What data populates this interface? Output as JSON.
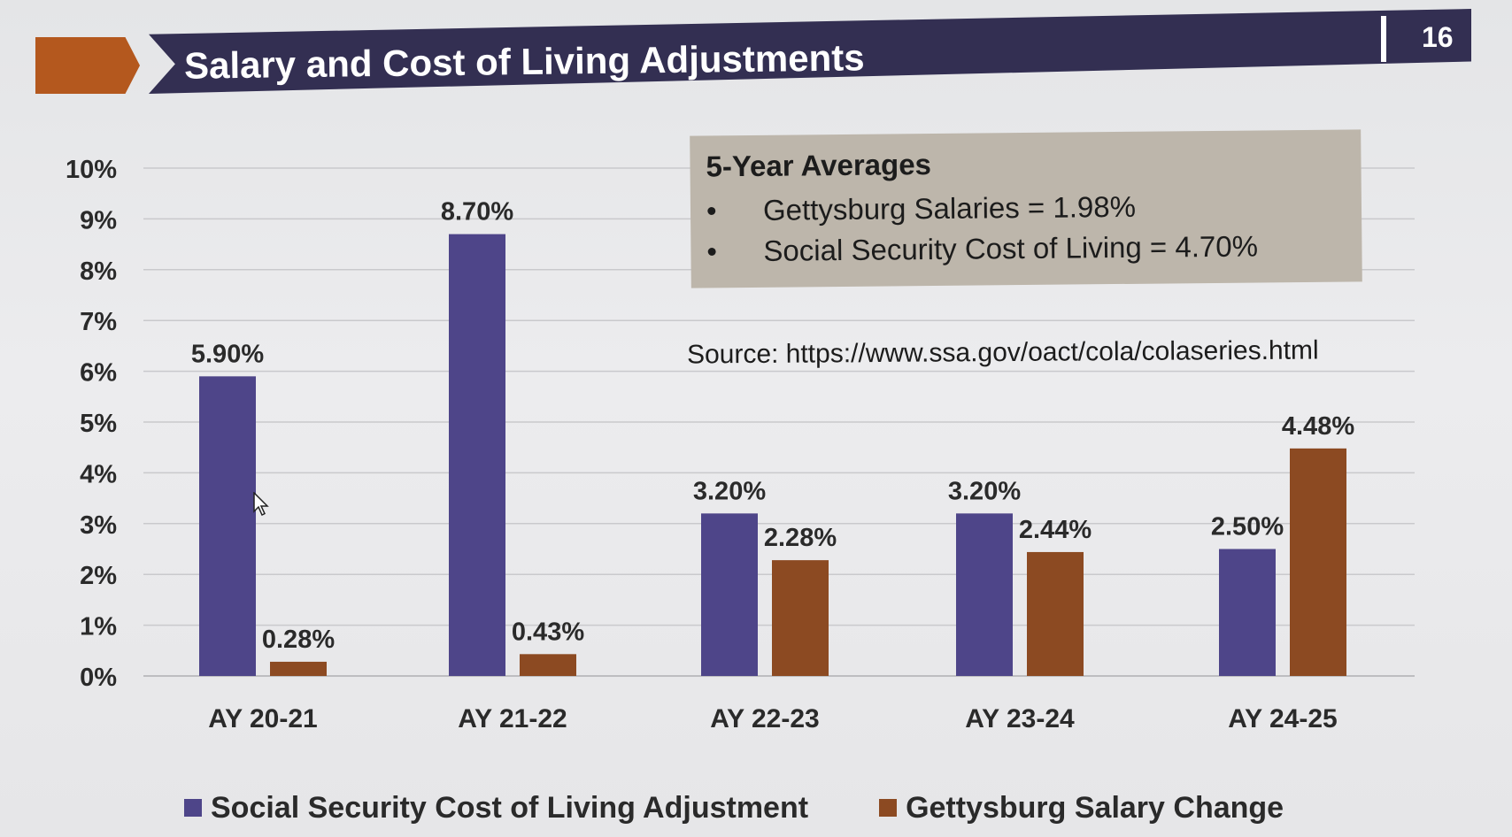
{
  "colors": {
    "ss": "#4e4589",
    "salary": "#8c4a22",
    "accent": "#b4581e",
    "title_bg": "#332f52",
    "info_bg": "#bdb6ab",
    "grid": "#c9c9cc",
    "axis_text": "#2a2a2a"
  },
  "slide": {
    "title": "Salary and Cost of Living Adjustments",
    "page_number": "16"
  },
  "info_box": {
    "heading": "5-Year Averages",
    "items": [
      "Gettysburg Salaries = 1.98%",
      "Social Security Cost of Living = 4.70%"
    ]
  },
  "source": "Source: https://www.ssa.gov/oact/cola/colaseries.html",
  "chart_data": {
    "type": "bar",
    "title": "",
    "xlabel": "",
    "ylabel": "",
    "categories": [
      "AY 20-21",
      "AY 21-22",
      "AY 22-23",
      "AY 23-24",
      "AY 24-25"
    ],
    "ylim": [
      0,
      10
    ],
    "yticks": [
      "0%",
      "1%",
      "2%",
      "3%",
      "4%",
      "5%",
      "6%",
      "7%",
      "8%",
      "9%",
      "10%"
    ],
    "grid": true,
    "legend_position": "bottom",
    "series": [
      {
        "name": "Social Security Cost of Living Adjustment",
        "values": [
          5.9,
          8.7,
          3.2,
          3.2,
          2.5
        ],
        "labels": [
          "5.90%",
          "8.70%",
          "3.20%",
          "3.20%",
          "2.50%"
        ],
        "color": "#4e4589"
      },
      {
        "name": "Gettysburg Salary Change",
        "values": [
          0.28,
          0.43,
          2.28,
          2.44,
          4.48
        ],
        "labels": [
          "0.28%",
          "0.43%",
          "2.28%",
          "2.44%",
          "4.48%"
        ],
        "color": "#8c4a22"
      }
    ]
  }
}
